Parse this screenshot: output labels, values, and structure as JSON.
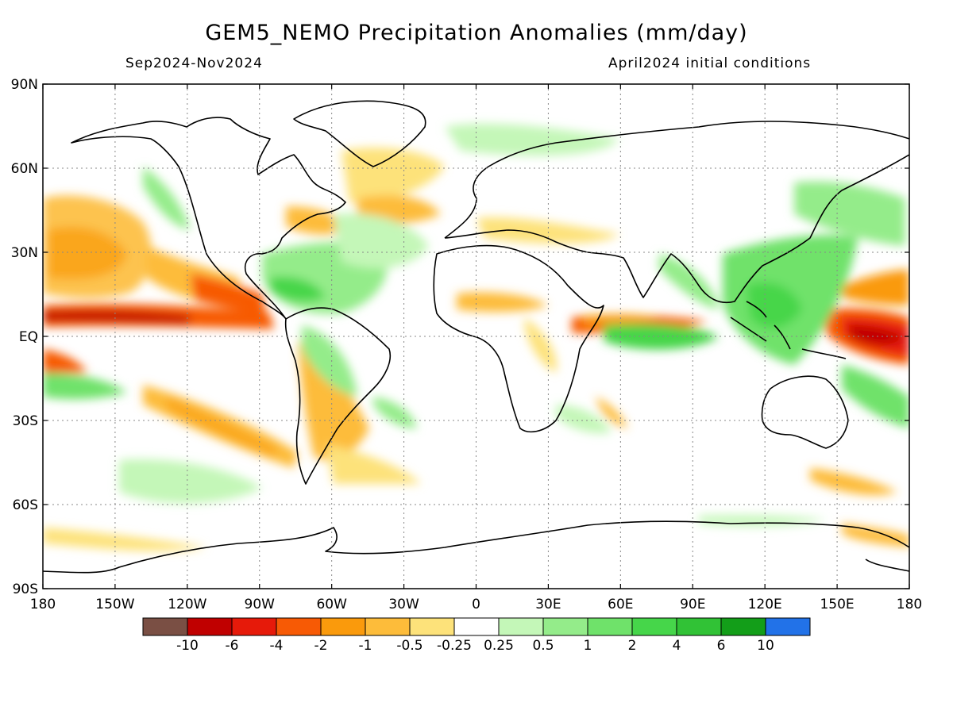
{
  "title": "GEM5_NEMO Precipitation Anomalies (mm/day)",
  "period": "Sep2024-Nov2024",
  "init": "April2024 initial conditions",
  "lat_labels": [
    "90N",
    "60N",
    "30N",
    "EQ",
    "30S",
    "60S",
    "90S"
  ],
  "lon_labels": [
    "180",
    "150W",
    "120W",
    "90W",
    "60W",
    "30W",
    "0",
    "30E",
    "60E",
    "90E",
    "120E",
    "150E",
    "180"
  ],
  "legend": {
    "colors": [
      "#7a4f44",
      "#c00000",
      "#e61a0a",
      "#f75a05",
      "#fa9a0c",
      "#fdbc3a",
      "#fde27a",
      "#ffffff",
      "#c4f7b8",
      "#94ec8a",
      "#6fe26a",
      "#46d64a",
      "#31c236",
      "#139e19",
      "#2272e8"
    ],
    "labels": [
      "-10",
      "-6",
      "-4",
      "-2",
      "-1",
      "-0.5",
      "-0.25",
      "0.25",
      "0.5",
      "1",
      "2",
      "4",
      "6",
      "10"
    ]
  }
}
